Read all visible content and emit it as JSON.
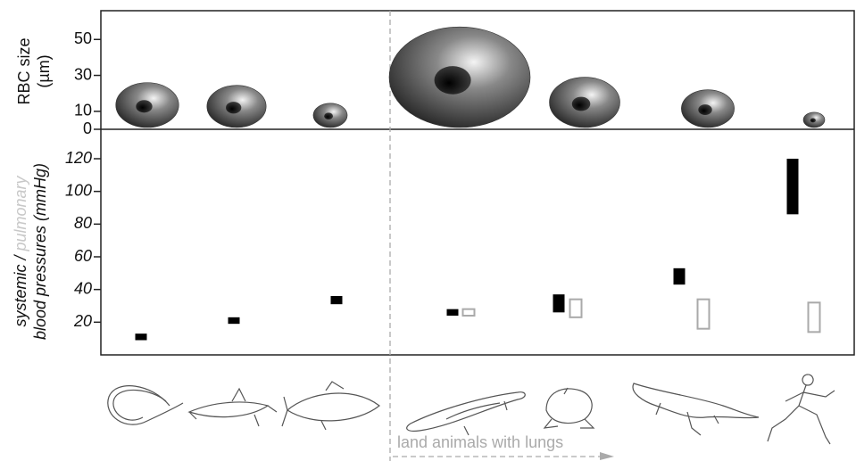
{
  "chart_data": [
    {
      "type": "bubble",
      "y_label": [
        "RBC size",
        "(µm)"
      ],
      "values": [
        25,
        23.5,
        13.5,
        56,
        28,
        21,
        8.5
      ],
      "color": "#333333",
      "ylim": [
        0,
        66
      ],
      "yticks": [
        0,
        10,
        30,
        50
      ]
    },
    {
      "type": "range",
      "y_label": [
        "systemic /",
        "pulmonary",
        "blood pressures (mmHg)"
      ],
      "series": [
        {
          "color": "#000000",
          "fill": true,
          "low": [
            9,
            19,
            31,
            24,
            26,
            43,
            86
          ],
          "high": [
            13,
            23,
            36,
            28,
            37,
            53,
            120
          ]
        },
        {
          "color": "#aaaaaa",
          "fill": false,
          "low": [
            null,
            null,
            null,
            24,
            23,
            16,
            14
          ],
          "high": [
            null,
            null,
            null,
            28,
            34,
            34,
            32
          ]
        }
      ],
      "ylim": [
        0,
        138
      ],
      "yticks": [
        20,
        40,
        60,
        80,
        100,
        120
      ],
      "annotation": "land animals with lungs"
    }
  ]
}
